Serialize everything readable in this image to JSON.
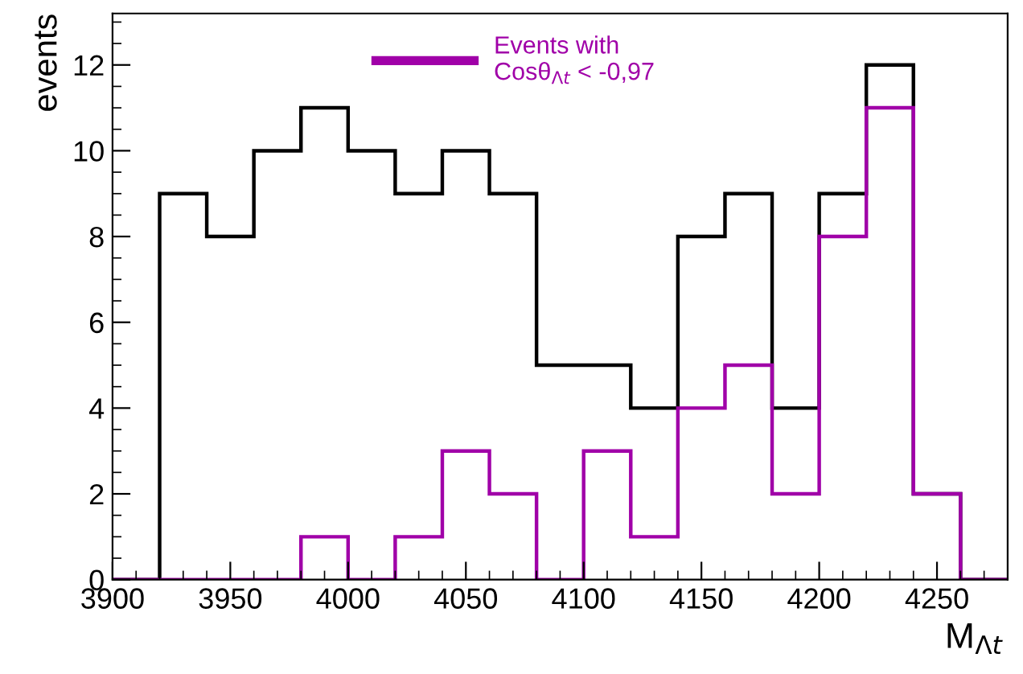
{
  "chart_data": {
    "type": "histogram",
    "ylabel": "events",
    "xlabel": "M$_{Λt}$",
    "bins": [
      3900,
      3920,
      3940,
      3960,
      3980,
      4000,
      4020,
      4040,
      4060,
      4080,
      4100,
      4120,
      4140,
      4160,
      4180,
      4200,
      4220,
      4240,
      4260,
      4280
    ],
    "series": [
      {
        "color": "#000000",
        "values": [
          0,
          9,
          8,
          10,
          11,
          10,
          9,
          10,
          9,
          5,
          5,
          4,
          8,
          9,
          4,
          9,
          12,
          2,
          0
        ]
      },
      {
        "name": "Events with\nCosθ$_{Λt}$ < -0,97",
        "color": "#a000a8",
        "values": [
          0,
          0,
          0,
          0,
          1,
          0,
          1,
          3,
          2,
          0,
          3,
          1,
          4,
          5,
          2,
          8,
          11,
          2,
          0
        ]
      }
    ],
    "xlim": [
      3900,
      4280
    ],
    "xticks": [
      3900,
      3950,
      4000,
      4050,
      4100,
      4150,
      4200,
      4250
    ],
    "ylim": [
      0,
      13.2
    ],
    "yticks": [
      0,
      2,
      4,
      6,
      8,
      10,
      12
    ],
    "grid": false,
    "legend": "top"
  }
}
